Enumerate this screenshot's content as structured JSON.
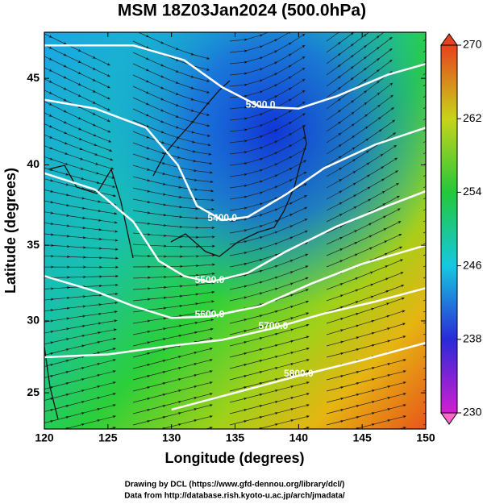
{
  "chart_data": {
    "type": "contour",
    "title": "MSM 18Z03Jan2024 (500.0hPa)",
    "xlabel": "Longitude (degrees)",
    "ylabel": "Latitude  (degrees)",
    "projection": "mercator",
    "xlim": [
      120,
      150
    ],
    "ylim": [
      22.4,
      47.5
    ],
    "xticks": [
      120,
      125,
      130,
      135,
      140,
      145,
      150
    ],
    "yticks": [
      25,
      30,
      35,
      40,
      45
    ],
    "colorbar": {
      "lim": [
        230,
        270
      ],
      "ticks": [
        230,
        238,
        246,
        254,
        262,
        270
      ]
    },
    "contours": [
      {
        "label": "5300.0",
        "level": 5300,
        "lon": [
          120,
          127,
          131,
          134,
          137,
          140,
          143,
          147,
          150
        ],
        "lat": [
          46.8,
          46.8,
          46,
          44.5,
          43.4,
          43.3,
          44,
          45.2,
          45.8
        ]
      },
      {
        "label": "5400.0",
        "level": 5400,
        "lon": [
          120,
          124,
          128,
          130.5,
          132,
          134,
          136,
          139,
          142,
          146,
          150
        ],
        "lat": [
          43.8,
          43.3,
          42.2,
          40,
          37.5,
          36.6,
          36.8,
          38.2,
          39.8,
          41.2,
          42.2
        ]
      },
      {
        "label": "5500.0",
        "level": 5500,
        "lon": [
          120,
          124,
          127,
          129,
          131,
          133,
          136,
          139,
          143,
          147,
          150
        ],
        "lat": [
          39.5,
          38.5,
          36.5,
          34,
          33,
          32.6,
          33.2,
          34.6,
          36.2,
          37.5,
          38.4
        ]
      },
      {
        "label": "5600.0",
        "level": 5600,
        "lon": [
          120,
          124,
          127,
          130,
          133,
          137,
          141,
          145,
          150
        ],
        "lat": [
          33,
          32,
          31,
          30.2,
          30.3,
          31,
          32.5,
          33.8,
          35
        ]
      },
      {
        "label": "5700.0",
        "level": 5700,
        "lon": [
          120,
          125,
          130,
          134,
          138,
          142,
          146,
          150
        ],
        "lat": [
          27.5,
          27.7,
          28.3,
          28.7,
          29.5,
          30.5,
          31.3,
          32.2
        ]
      },
      {
        "label": "5800.0",
        "level": 5800,
        "lon": [
          130,
          135,
          140,
          145,
          150
        ],
        "lat": [
          23.8,
          25,
          26.2,
          27.3,
          28.5
        ]
      }
    ]
  },
  "footer": [
    "Drawing by DCL (https://www.gfd-dennou.org/library/dcl/)",
    "Data from http://database.rish.kyoto-u.ac.jp/arch/jmadata/"
  ]
}
